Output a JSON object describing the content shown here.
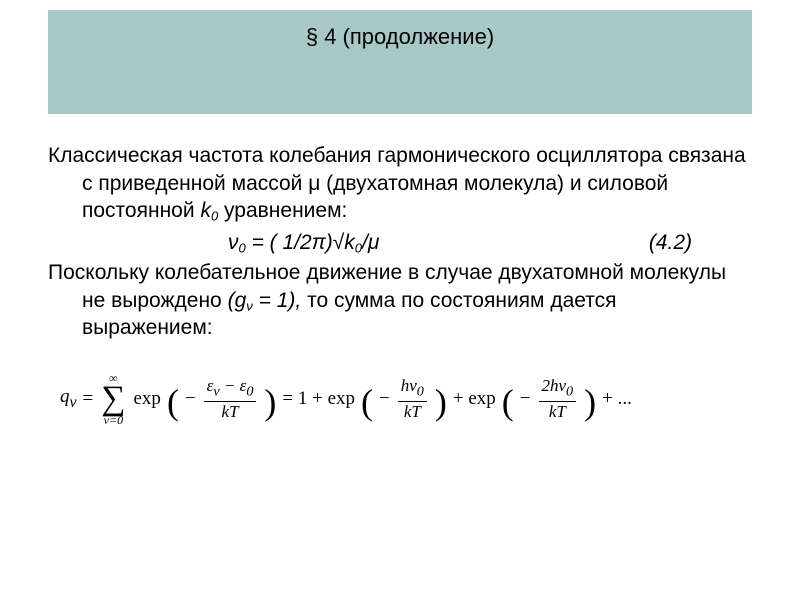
{
  "colors": {
    "title_band_bg": "#a8c8c8",
    "page_bg": "#ffffff",
    "text": "#000000"
  },
  "typography": {
    "body_font": "Arial",
    "body_size_pt": 16,
    "formula_font": "Times New Roman",
    "formula_size_pt": 15
  },
  "title": "§ 4 (продолжение)",
  "paragraph1_parts": {
    "pre": "Классическая частота колебания гармонического осциллятора  связана с приведенной массой μ (двухатомная молекула) и силовой постоянной ",
    "k": "k",
    "k_sub": "0",
    "post": " уравнением:"
  },
  "equation_4_2": {
    "lhs_var": "ν",
    "lhs_sub": "0",
    "mid": " = ( 1/2π)√",
    "k": "k",
    "k_sub": "0",
    "tail": "/μ",
    "number": "(4.2)"
  },
  "paragraph2_parts": {
    "pre": "Поскольку колебательное движение в случае двухатомной молекулы не вырождено ",
    "g_open": "(g",
    "g_sub": "ν",
    "g_close": " = 1),",
    "post": "  то сумма по состояниям дается выражением:"
  },
  "formula": {
    "q": "q",
    "q_sub": "ν",
    "eq": "=",
    "sum_top": "∞",
    "sum_bot": "ν=0",
    "exp": "exp",
    "minus": "−",
    "frac1_num": "ε<sub>ν</sub> − ε<sub>0</sub>",
    "frac1_den": "kT",
    "one_plus": "= 1 + exp",
    "frac2_num": "hν<sub>0</sub>",
    "frac2_den": "kT",
    "plus_exp": "+ exp",
    "frac3_num": "2hν<sub>0</sub>",
    "frac3_den": "kT",
    "trailing": "+ ..."
  }
}
